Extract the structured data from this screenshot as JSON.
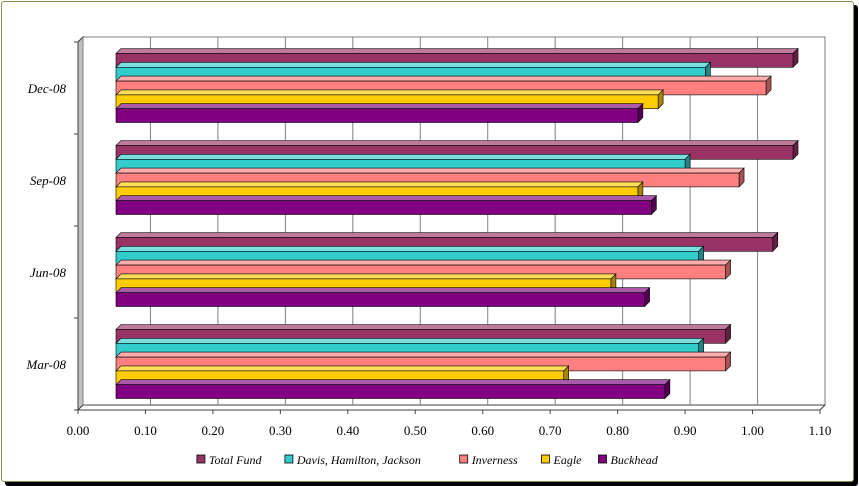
{
  "chart_data": {
    "type": "bar",
    "orientation": "horizontal",
    "style": "3d",
    "categories": [
      "Dec-08",
      "Sep-08",
      "Jun-08",
      "Mar-08"
    ],
    "series": [
      {
        "name": "Total Fund",
        "color": "#993366",
        "values": [
          1.06,
          1.06,
          1.03,
          0.96
        ]
      },
      {
        "name": "Davis, Hamilton, Jackson",
        "color": "#33CCCC",
        "values": [
          0.93,
          0.9,
          0.92,
          0.92
        ]
      },
      {
        "name": "Inverness",
        "color": "#FF8080",
        "values": [
          1.02,
          0.98,
          0.96,
          0.96
        ]
      },
      {
        "name": "Eagle",
        "color": "#FFCC00",
        "values": [
          0.86,
          0.83,
          0.79,
          0.72
        ]
      },
      {
        "name": "Buckhead",
        "color": "#800080",
        "values": [
          0.83,
          0.85,
          0.84,
          0.87
        ]
      }
    ],
    "xlim": [
      0,
      1.1
    ],
    "xticks": [
      "0.00",
      "0.10",
      "0.20",
      "0.30",
      "0.40",
      "0.50",
      "0.60",
      "0.70",
      "0.80",
      "0.90",
      "1.00",
      "1.10"
    ],
    "grid": true,
    "legend_position": "bottom",
    "title": "",
    "xlabel": "",
    "ylabel": ""
  }
}
